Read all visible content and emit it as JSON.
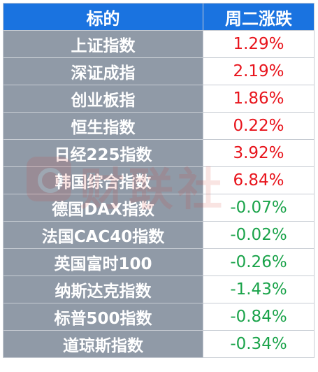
{
  "header": {
    "col_name": "标的",
    "col_change": "周二涨跌"
  },
  "rows": [
    {
      "name": "上证指数",
      "change": "1.29%",
      "color": "#e8141c"
    },
    {
      "name": "深证成指",
      "change": "2.19%",
      "color": "#e8141c"
    },
    {
      "name": "创业板指",
      "change": "1.86%",
      "color": "#e8141c"
    },
    {
      "name": "恒生指数",
      "change": "0.22%",
      "color": "#e8141c"
    },
    {
      "name": "日经225指数",
      "change": "3.92%",
      "color": "#e8141c"
    },
    {
      "name": "韩国综合指数",
      "change": "6.84%",
      "color": "#e8141c"
    },
    {
      "name": "德国DAX指数",
      "change": "-0.07%",
      "color": "#1aa34a"
    },
    {
      "name": "法国CAC40指数",
      "change": "-0.02%",
      "color": "#1aa34a"
    },
    {
      "name": "英国富时100",
      "change": "-0.26%",
      "color": "#1aa34a"
    },
    {
      "name": "纳斯达克指数",
      "change": "-1.43%",
      "color": "#1aa34a"
    },
    {
      "name": "标普500指数",
      "change": "-0.84%",
      "color": "#1aa34a"
    },
    {
      "name": "道琼斯指数",
      "change": "-0.34%",
      "color": "#1aa34a"
    }
  ],
  "watermark": {
    "text": "财联社",
    "icon": "cls-logo-icon"
  }
}
